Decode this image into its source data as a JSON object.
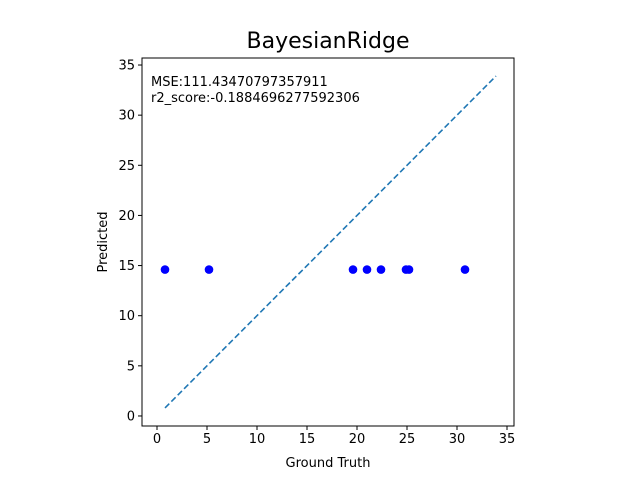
{
  "chart_data": {
    "type": "scatter",
    "title": "BayesianRidge",
    "xlabel": "Ground Truth",
    "ylabel": "Predicted",
    "xlim": [
      -1.5,
      35.7
    ],
    "ylim": [
      -1.0,
      35.7
    ],
    "xticks": [
      0,
      5,
      10,
      15,
      20,
      25,
      30,
      35
    ],
    "yticks": [
      0,
      5,
      10,
      15,
      20,
      25,
      30,
      35
    ],
    "grid": false,
    "annotations": [
      "MSE:111.43470797357911",
      "r2_score:-0.1884696277592306"
    ],
    "series": [
      {
        "type": "scatter",
        "color": "#0000ff",
        "x": [
          0.8,
          5.2,
          19.6,
          21.0,
          22.4,
          24.9,
          25.2,
          30.8
        ],
        "y": [
          14.6,
          14.6,
          14.6,
          14.6,
          14.6,
          14.6,
          14.6,
          14.6
        ]
      },
      {
        "type": "line",
        "style": "dashed",
        "color": "#1f77b4",
        "x": [
          0.8,
          33.9
        ],
        "y": [
          0.8,
          33.9
        ]
      }
    ]
  }
}
